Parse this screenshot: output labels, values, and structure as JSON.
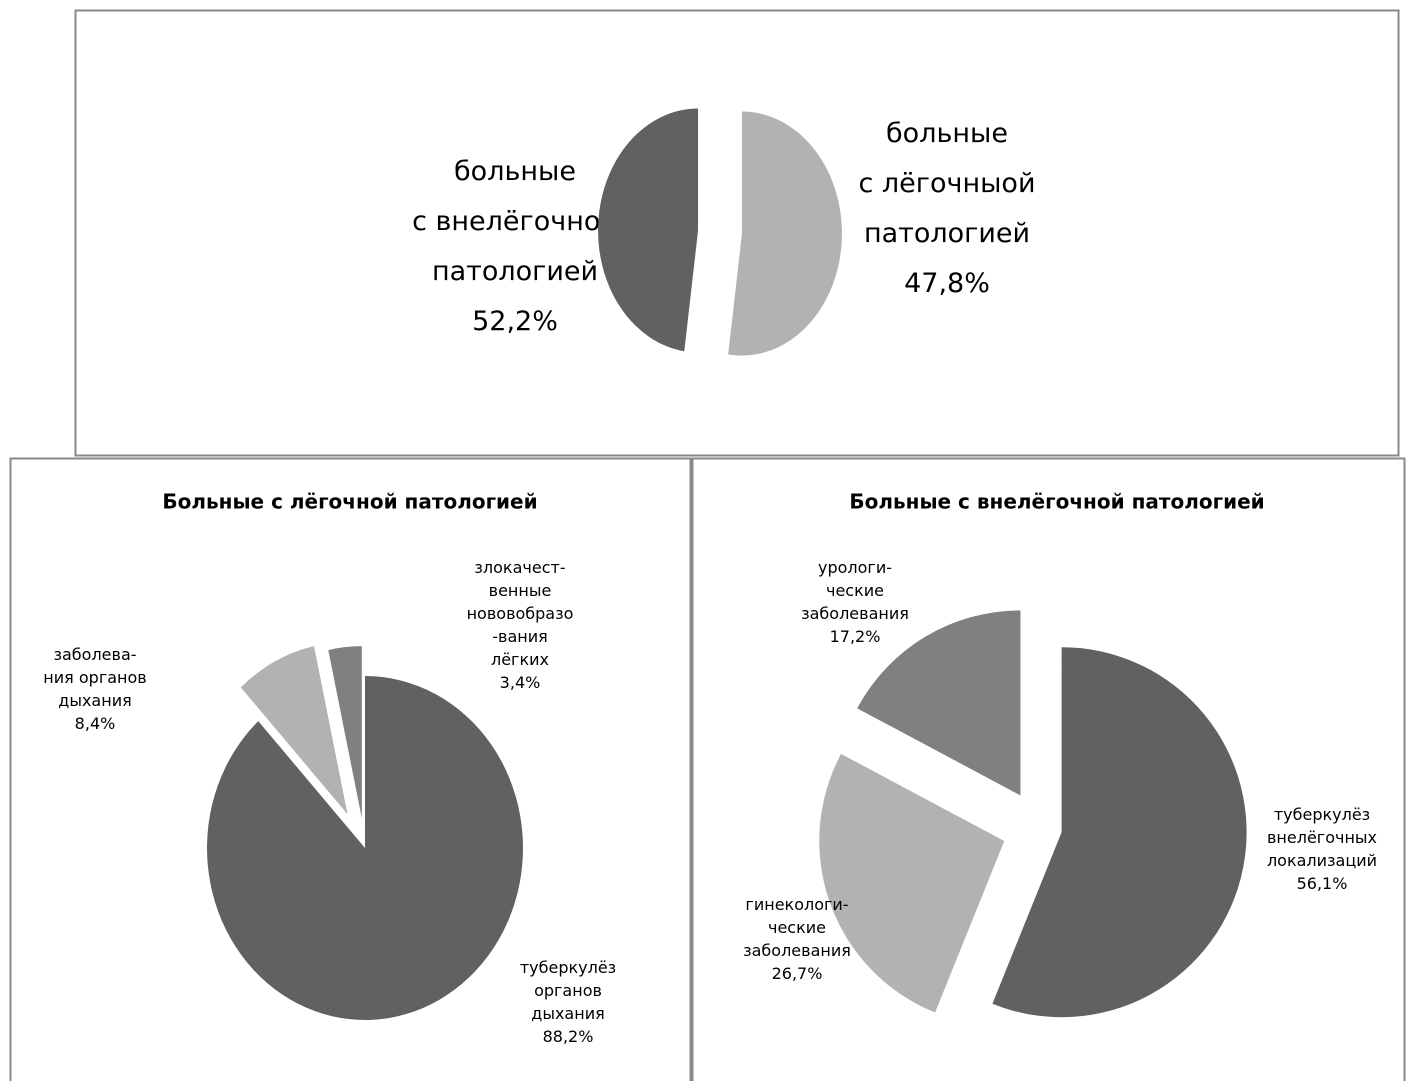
{
  "chart_data": [
    {
      "type": "pie",
      "categories": [
        "больные\nс внелёгочной\nпатологией",
        "больные\nс лёгочныой\nпатологией"
      ],
      "values": [
        52.2,
        47.8
      ],
      "value_labels": [
        "52,2%",
        "47,8%"
      ],
      "colors": [
        "#b2b2b2",
        "#616161"
      ]
    },
    {
      "type": "pie",
      "title": "Больные  с лёгочной патологией",
      "categories": [
        "туберкулёз\nорганов\nдыхания",
        "заболева-\nния органов\nдыхания",
        "злокачест-\nвенные\nнововобразо\n-вания\nлёгких"
      ],
      "values": [
        88.2,
        8.4,
        3.4
      ],
      "value_labels": [
        "88,2%",
        "8,4%",
        "3,4%"
      ],
      "colors": [
        "#616161",
        "#b2b2b2",
        "#808080"
      ]
    },
    {
      "type": "pie",
      "title": "Больные  с внелёгочной патологией",
      "categories": [
        "туберкулёз\nвнелёгочных\nлокализаций",
        "гинекологи-\nческие\nзаболевания",
        "урологи-\nческие\nзаболевания"
      ],
      "values": [
        56.1,
        26.7,
        17.2
      ],
      "value_labels": [
        "56,1%",
        "26,7%",
        "17,2%"
      ],
      "colors": [
        "#616161",
        "#b2b2b2",
        "#808080"
      ]
    }
  ]
}
